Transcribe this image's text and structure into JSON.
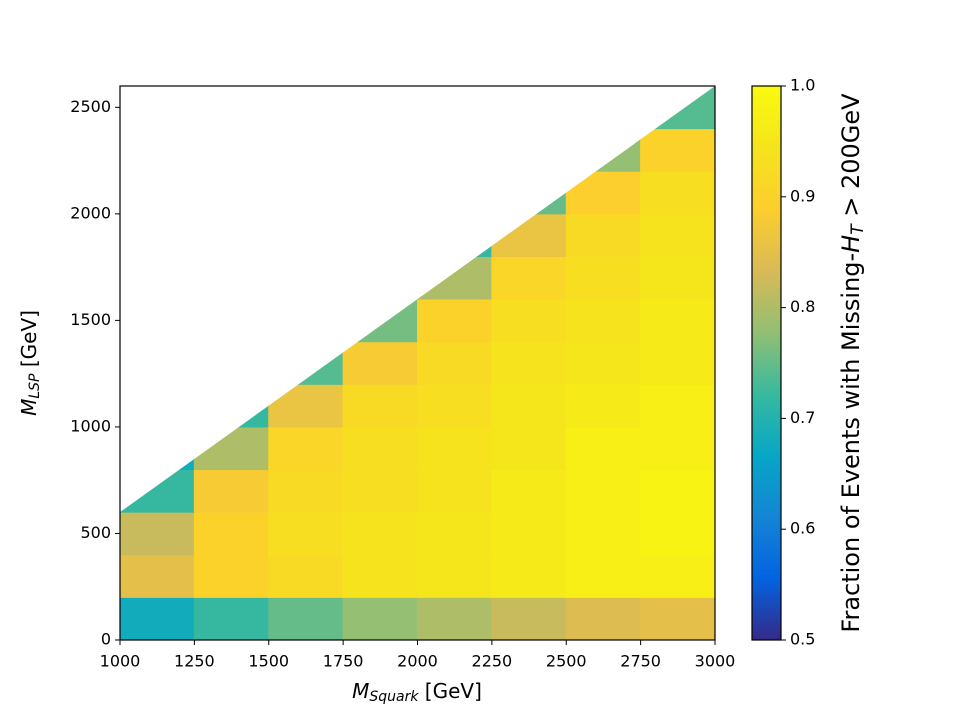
{
  "chart_data": {
    "type": "heatmap",
    "xlabel": [
      "M",
      "Squark",
      " [GeV]"
    ],
    "ylabel": [
      "M",
      "LSP",
      " [GeV]"
    ],
    "colorbar_label": [
      "Fraction of Events with Missing-",
      "H",
      "T",
      " > 200GeV"
    ],
    "x": [
      1000,
      1250,
      1500,
      1750,
      2000,
      2250,
      2500,
      2750,
      3000
    ],
    "y": [
      0,
      200,
      400,
      600,
      800,
      1000,
      1200,
      1400,
      1600,
      1800,
      2000,
      2200,
      2400,
      2600
    ],
    "z": [
      [
        0.68,
        0.72,
        0.75,
        0.78,
        0.8,
        0.82,
        0.84,
        0.85
      ],
      [
        0.85,
        0.9,
        0.92,
        0.94,
        0.95,
        0.96,
        0.97,
        0.97
      ],
      [
        0.82,
        0.9,
        0.93,
        0.94,
        0.95,
        0.96,
        0.97,
        0.98
      ],
      [
        0.72,
        0.88,
        0.92,
        0.93,
        0.94,
        0.96,
        0.97,
        0.98
      ],
      [
        0.68,
        0.8,
        0.91,
        0.93,
        0.94,
        0.95,
        0.97,
        0.97
      ],
      [
        null,
        0.72,
        0.86,
        0.92,
        0.93,
        0.95,
        0.96,
        0.97
      ],
      [
        null,
        null,
        0.74,
        0.88,
        0.92,
        0.94,
        0.95,
        0.96
      ],
      [
        null,
        null,
        null,
        0.76,
        0.9,
        0.93,
        0.94,
        0.96
      ],
      [
        null,
        null,
        null,
        null,
        0.8,
        0.91,
        0.93,
        0.95
      ],
      [
        null,
        null,
        null,
        null,
        0.72,
        0.86,
        0.92,
        0.94
      ],
      [
        null,
        null,
        null,
        null,
        null,
        0.75,
        0.89,
        0.93
      ],
      [
        null,
        null,
        null,
        null,
        null,
        null,
        0.78,
        0.9
      ],
      [
        null,
        null,
        null,
        null,
        null,
        null,
        null,
        0.74
      ]
    ],
    "xlim": [
      1000,
      3000
    ],
    "ylim": [
      0,
      2600
    ],
    "xticks": [
      1000,
      1250,
      1500,
      1750,
      2000,
      2250,
      2500,
      2750,
      3000
    ],
    "yticks": [
      0,
      500,
      1000,
      1500,
      2000,
      2500
    ],
    "clim": [
      0.5,
      1.0
    ],
    "cticks": [
      0.5,
      0.6,
      0.7,
      0.8,
      0.9,
      {
        "value": 1.0,
        "label": "1.0"
      }
    ],
    "colormap": [
      "#352a87",
      "#0363e1",
      "#1485d4",
      "#06a7c6",
      "#38b99e",
      "#92bf73",
      "#d9ba56",
      "#fcce2e",
      "#f5e41c",
      "#f9fb0e"
    ]
  }
}
